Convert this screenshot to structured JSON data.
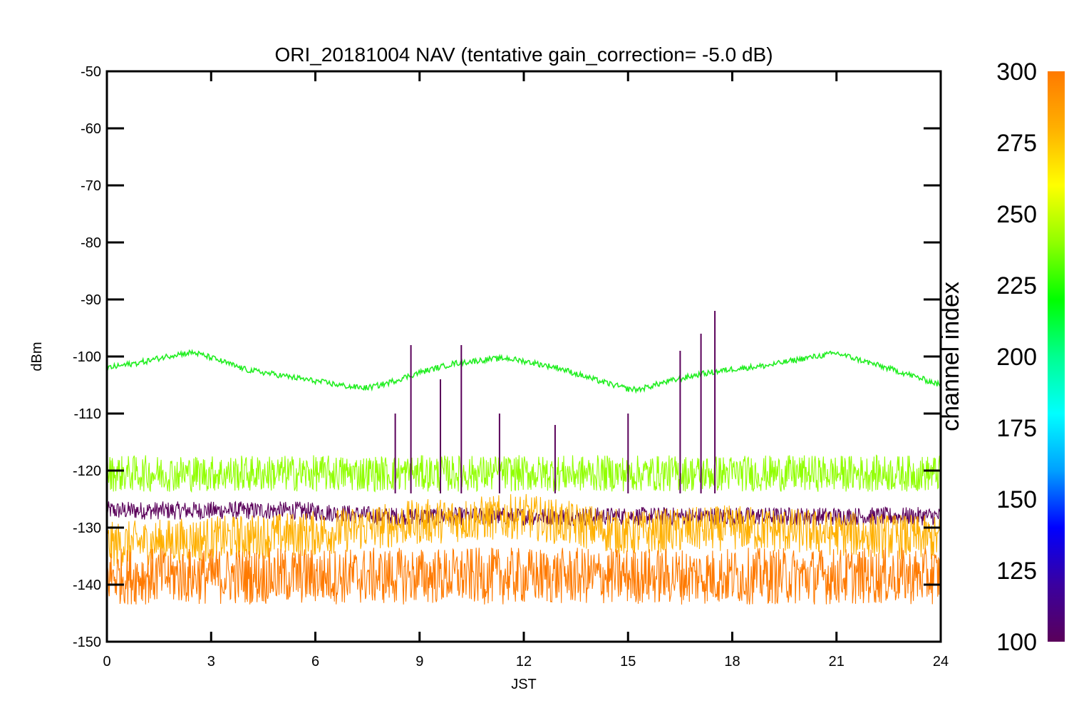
{
  "chart_data": {
    "type": "line",
    "title": "ORI_20181004 NAV (tentative gain_correction= -5.0 dB)",
    "xlabel": "JST",
    "ylabel": "dBm",
    "xlim": [
      0,
      24
    ],
    "ylim": [
      -150,
      -50
    ],
    "x_ticks": [
      "0",
      "3",
      "6",
      "9",
      "12",
      "15",
      "18",
      "21",
      "24"
    ],
    "y_ticks": [
      "-50",
      "-60",
      "-70",
      "-80",
      "-90",
      "-100",
      "-110",
      "-120",
      "-130",
      "-140",
      "-150"
    ],
    "grid": false,
    "colorbar": {
      "label": "channel index",
      "range": [
        100,
        300
      ],
      "ticks": [
        "300",
        "275",
        "250",
        "225",
        "200",
        "175",
        "150",
        "125",
        "100"
      ],
      "colors": [
        "#5a005a",
        "#3a00a0",
        "#0000ff",
        "#00a0ff",
        "#00ffff",
        "#00ff90",
        "#00ff00",
        "#90ff00",
        "#ffff00",
        "#ffb000",
        "#ff7a00"
      ]
    },
    "series": [
      {
        "color": "#22ee22",
        "x": [
          0,
          1,
          2,
          2.5,
          3,
          4,
          5,
          6,
          7,
          7.5,
          8,
          9,
          10,
          11,
          11.5,
          12,
          13,
          14,
          15,
          15.3,
          16,
          17,
          18,
          19,
          20,
          21,
          22,
          23,
          24
        ],
        "y": [
          -102,
          -101,
          -99.6,
          -99.3,
          -100.2,
          -102.3,
          -103.3,
          -104.3,
          -105.3,
          -105.5,
          -104.8,
          -102.8,
          -101.2,
          -100.5,
          -100.3,
          -100.8,
          -102,
          -104,
          -105.7,
          -105.8,
          -104.6,
          -103.2,
          -102.2,
          -101.6,
          -100.4,
          -99.4,
          -101.2,
          -103,
          -105
        ]
      },
      {
        "color": "#90ff00",
        "x": [
          0,
          3,
          6,
          9,
          12,
          15,
          18,
          21,
          24
        ],
        "y": [
          -120.5,
          -120.5,
          -120.5,
          -120.5,
          -120.5,
          -120.5,
          -120.5,
          -120.5,
          -120.5
        ]
      },
      {
        "color": "#5a005a",
        "x": [
          0,
          2,
          4,
          5.5,
          8,
          11,
          14,
          17,
          20,
          24
        ],
        "y": [
          -127,
          -127,
          -127,
          -127,
          -128,
          -128,
          -128,
          -128,
          -128,
          -128
        ]
      },
      {
        "color": "#ffb000",
        "x": [
          0,
          3,
          6,
          9,
          12,
          15,
          18,
          21,
          24
        ],
        "y": [
          -133,
          -132,
          -131,
          -129,
          -128,
          -131,
          -130,
          -131,
          -132
        ]
      },
      {
        "color": "#ff7a00",
        "x": [
          0,
          3,
          6,
          9,
          12,
          15,
          18,
          21,
          24
        ],
        "y": [
          -138.5,
          -138.5,
          -138.5,
          -138.5,
          -138.5,
          -138.5,
          -138.5,
          -138.5,
          -138.5
        ]
      }
    ],
    "spikes": {
      "color": "#5a005a",
      "x": [
        8.3,
        8.75,
        9.6,
        10.2,
        11.3,
        12.9,
        15.0,
        16.5,
        17.1,
        17.5
      ],
      "y": [
        -110,
        -98,
        -104,
        -98,
        -110,
        -112,
        -110,
        -99,
        -96,
        -92
      ]
    }
  }
}
